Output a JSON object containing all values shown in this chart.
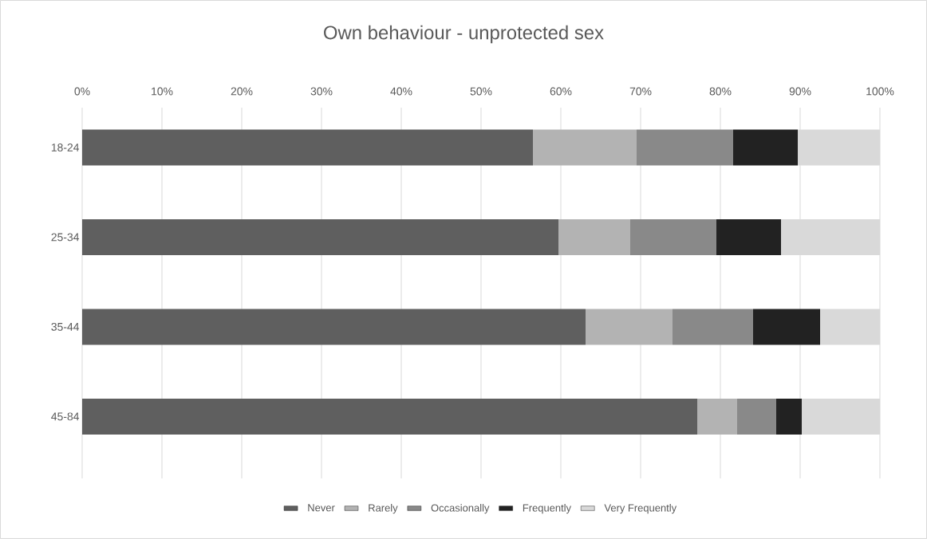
{
  "chart_data": {
    "type": "bar",
    "orientation": "horizontal",
    "stacked": true,
    "title": "Own behaviour - unprotected sex",
    "categories": [
      "18-24",
      "25-34",
      "35-44",
      "45-84"
    ],
    "series": [
      {
        "name": "Never",
        "color": "#5f5f5f",
        "values": [
          56.5,
          59.7,
          63.1,
          77.1
        ]
      },
      {
        "name": "Rarely",
        "color": "#b3b3b3",
        "values": [
          13.0,
          9.0,
          10.9,
          5.0
        ]
      },
      {
        "name": "Occasionally",
        "color": "#898989",
        "values": [
          12.1,
          10.8,
          10.1,
          4.9
        ]
      },
      {
        "name": "Frequently",
        "color": "#222222",
        "values": [
          8.1,
          8.1,
          8.4,
          3.2
        ]
      },
      {
        "name": "Very Frequently",
        "color": "#d9d9d9",
        "values": [
          10.3,
          12.4,
          7.5,
          9.8
        ]
      }
    ],
    "xlim": [
      0,
      100
    ],
    "xticks": [
      {
        "value": 0,
        "label": "0%"
      },
      {
        "value": 10,
        "label": "10%"
      },
      {
        "value": 20,
        "label": "20%"
      },
      {
        "value": 30,
        "label": "30%"
      },
      {
        "value": 40,
        "label": "40%"
      },
      {
        "value": 50,
        "label": "50%"
      },
      {
        "value": 60,
        "label": "60%"
      },
      {
        "value": 70,
        "label": "70%"
      },
      {
        "value": 80,
        "label": "80%"
      },
      {
        "value": 90,
        "label": "90%"
      },
      {
        "value": 100,
        "label": "100%"
      }
    ],
    "grid": "x",
    "legend": "bottom"
  }
}
